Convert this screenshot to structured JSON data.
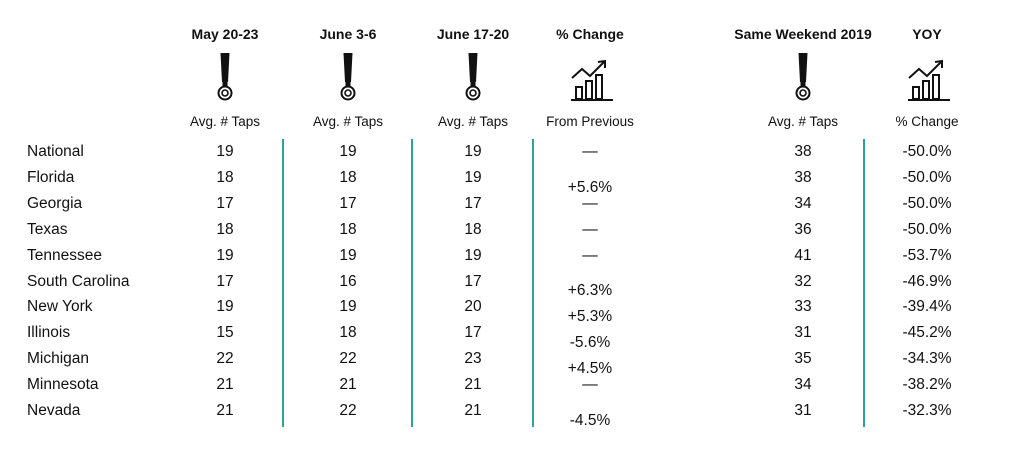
{
  "columns": [
    {
      "key": "may",
      "header": "May 20-23",
      "icon": "beer-tap-icon",
      "sub": "Avg. # Taps"
    },
    {
      "key": "june3",
      "header": "June 3-6",
      "icon": "beer-tap-icon",
      "sub": "Avg. # Taps"
    },
    {
      "key": "june17",
      "header": "June 17-20",
      "icon": "beer-tap-icon",
      "sub": "Avg. # Taps"
    },
    {
      "key": "change",
      "header": "% Change",
      "icon": "growth-chart-icon",
      "sub": "From Previous"
    },
    {
      "key": "y2019",
      "header": "Same Weekend 2019",
      "icon": "beer-tap-icon",
      "sub": "Avg. # Taps"
    },
    {
      "key": "yoy",
      "header": "YOY",
      "icon": "growth-chart-icon",
      "sub": "% Change"
    }
  ],
  "accent_color": "#2aa39a",
  "chart_data": {
    "type": "table",
    "columns": [
      "May 20-23",
      "June 3-6",
      "June 17-20",
      "% Change",
      "Same Weekend 2019",
      "YOY"
    ],
    "rows": [
      {
        "region": "National",
        "may": "19",
        "june3": "19",
        "june17": "19",
        "change": "—",
        "y2019": "38",
        "yoy": "-50.0%"
      },
      {
        "region": "Florida",
        "may": "18",
        "june3": "18",
        "june17": "19",
        "change": "+5.6%",
        "y2019": "38",
        "yoy": "-50.0%"
      },
      {
        "region": "Georgia",
        "may": "17",
        "june3": "17",
        "june17": "17",
        "change": "—",
        "y2019": "34",
        "yoy": "-50.0%"
      },
      {
        "region": "Texas",
        "may": "18",
        "june3": "18",
        "june17": "18",
        "change": "—",
        "y2019": "36",
        "yoy": "-50.0%"
      },
      {
        "region": "Tennessee",
        "may": "19",
        "june3": "19",
        "june17": "19",
        "change": "—",
        "y2019": "41",
        "yoy": "-53.7%"
      },
      {
        "region": "South Carolina",
        "may": "17",
        "june3": "16",
        "june17": "17",
        "change": "+6.3%",
        "y2019": "32",
        "yoy": "-46.9%"
      },
      {
        "region": "New York",
        "may": "19",
        "june3": "19",
        "june17": "20",
        "change": "+5.3%",
        "y2019": "33",
        "yoy": "-39.4%"
      },
      {
        "region": "Illinois",
        "may": "15",
        "june3": "18",
        "june17": "17",
        "change": "-5.6%",
        "y2019": "31",
        "yoy": "-45.2%"
      },
      {
        "region": "Michigan",
        "may": "22",
        "june3": "22",
        "june17": "23",
        "change": "+4.5%",
        "y2019": "35",
        "yoy": "-34.3%"
      },
      {
        "region": "Minnesota",
        "may": "21",
        "june3": "21",
        "june17": "21",
        "change": "—",
        "y2019": "34",
        "yoy": "-38.2%"
      },
      {
        "region": "Nevada",
        "may": "21",
        "june3": "22",
        "june17": "21",
        "change": "-4.5%",
        "y2019": "31",
        "yoy": "-32.3%"
      }
    ]
  }
}
